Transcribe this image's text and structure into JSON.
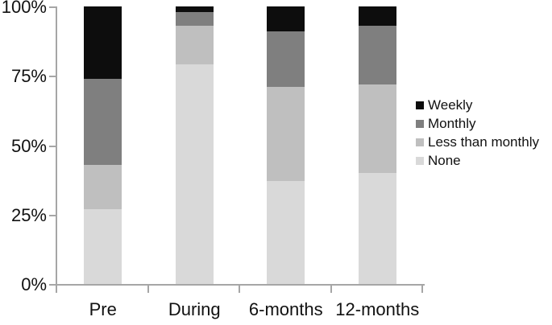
{
  "chart_data": {
    "type": "bar",
    "subtype": "stacked-percent-column",
    "title": "",
    "xlabel": "",
    "ylabel": "",
    "categories": [
      "Pre",
      "During",
      "6-months",
      "12-months"
    ],
    "series": [
      {
        "name": "Weekly",
        "color": "#0d0d0d",
        "values": [
          26,
          2,
          9,
          7
        ]
      },
      {
        "name": "Monthly",
        "color": "#7f7f7f",
        "values": [
          31,
          5,
          20,
          21
        ]
      },
      {
        "name": "Less than monthly",
        "color": "#bfbfbf",
        "values": [
          16,
          14,
          34,
          32
        ]
      },
      {
        "name": "None",
        "color": "#d9d9d9",
        "values": [
          27,
          79,
          37,
          40
        ]
      }
    ],
    "stack_order_bottom_to_top": [
      "None",
      "Less than monthly",
      "Monthly",
      "Weekly"
    ],
    "ylim": [
      0,
      100
    ],
    "yticks": [
      "0%",
      "25%",
      "50%",
      "75%",
      "100%"
    ],
    "grid": false,
    "legend_position": "right",
    "axis_color": "#a6a6a6",
    "text_color": "#111111"
  }
}
